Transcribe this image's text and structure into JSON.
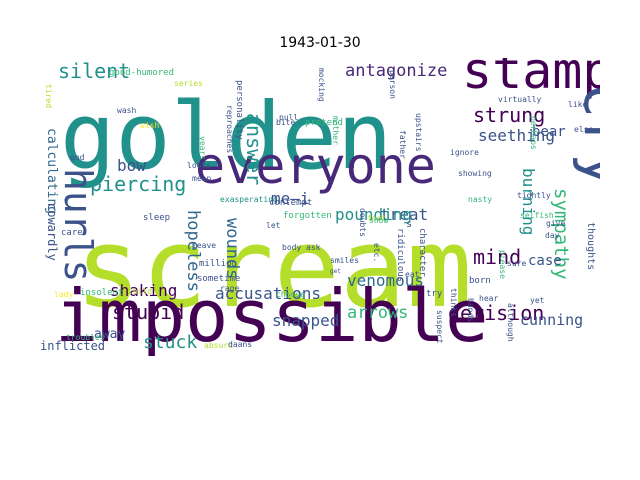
{
  "title": "1943-01-30",
  "palette": {
    "purple": "#440154",
    "indigo": "#3b528b",
    "blue": "#31688e",
    "teal": "#21918c",
    "green": "#35b779",
    "lime": "#b5de2b",
    "yellow": "#fde725"
  },
  "words": [
    {
      "text": "scream",
      "color": "#b5de2b"
    },
    {
      "text": "golden",
      "color": "#21918c"
    },
    {
      "text": "impossible",
      "color": "#440154"
    },
    {
      "text": "everyone",
      "color": "#482878"
    },
    {
      "text": "stamp",
      "color": "#440154"
    },
    {
      "text": "cry",
      "color": "#3b528b"
    },
    {
      "text": "hurls",
      "color": "#3b528b"
    },
    {
      "text": "antagonize",
      "color": "#482878"
    },
    {
      "text": "silent",
      "color": "#21918c"
    },
    {
      "text": "piercing",
      "color": "#21918c"
    },
    {
      "text": "bow",
      "color": "#3b528b"
    },
    {
      "text": "answer",
      "color": "#21918c"
    },
    {
      "text": "strung",
      "color": "#440154"
    },
    {
      "text": "mind",
      "color": "#440154"
    },
    {
      "text": "sympathy",
      "color": "#35b779"
    },
    {
      "text": "burning",
      "color": "#21918c"
    },
    {
      "text": "seething",
      "color": "#3b528b"
    },
    {
      "text": "wounds",
      "color": "#31688e"
    },
    {
      "text": "hopeless",
      "color": "#31688e"
    },
    {
      "text": "me—i",
      "color": "#3b528b"
    },
    {
      "text": "treat",
      "color": "#3b528b"
    },
    {
      "text": "pounding",
      "color": "#21918c"
    },
    {
      "text": "venomous",
      "color": "#31688e"
    },
    {
      "text": "arrows",
      "color": "#35b779"
    },
    {
      "text": "accusations",
      "color": "#3b528b"
    },
    {
      "text": "derision",
      "color": "#440154"
    },
    {
      "text": "shaking",
      "color": "#440154"
    },
    {
      "text": "stupid",
      "color": "#440154"
    },
    {
      "text": "stuck",
      "color": "#21918c"
    },
    {
      "text": "snapped",
      "color": "#3b528b"
    },
    {
      "text": "cunning",
      "color": "#3b528b"
    },
    {
      "text": "case",
      "color": "#3b528b"
    },
    {
      "text": "bear",
      "color": "#3b528b"
    },
    {
      "text": "calculating",
      "color": "#31688e"
    },
    {
      "text": "cowardly",
      "color": "#3b528b"
    },
    {
      "text": "away",
      "color": "#3b528b"
    },
    {
      "text": "inflicted",
      "color": "#3b528b"
    },
    {
      "text": "thoughts",
      "color": "#3b528b"
    },
    {
      "text": "good-humored",
      "color": "#35b779"
    },
    {
      "text": "personality",
      "color": "#3b528b"
    },
    {
      "text": "reproaches",
      "color": "#3b528b"
    },
    {
      "text": "exasperating",
      "color": "#21918c"
    },
    {
      "text": "mocking",
      "color": "#3b528b"
    },
    {
      "text": "mother",
      "color": "#35b779"
    },
    {
      "text": "pretend",
      "color": "#35b779"
    },
    {
      "text": "upstairs",
      "color": "#3b528b"
    },
    {
      "text": "father",
      "color": "#3b528b"
    },
    {
      "text": "virtually",
      "color": "#3b528b"
    },
    {
      "text": "showing",
      "color": "#3b528b"
    },
    {
      "text": "nasty",
      "color": "#35b779"
    },
    {
      "text": "ignore",
      "color": "#3b528b"
    },
    {
      "text": "tightly",
      "color": "#3b528b"
    },
    {
      "text": "selfish",
      "color": "#35b779"
    },
    {
      "text": "ridiculous",
      "color": "#3b528b"
    },
    {
      "text": "character",
      "color": "#3b528b"
    },
    {
      "text": "suspect",
      "color": "#3b528b"
    },
    {
      "text": "thinks",
      "color": "#3b528b"
    },
    {
      "text": "forgotten",
      "color": "#35b779"
    },
    {
      "text": "contempt",
      "color": "#3b528b"
    },
    {
      "text": "doubts",
      "color": "#3b528b"
    },
    {
      "text": "million",
      "color": "#3b528b"
    },
    {
      "text": "sometime",
      "color": "#3b528b"
    },
    {
      "text": "insolent",
      "color": "#35b779"
    },
    {
      "text": "troubles",
      "color": "#35b779"
    },
    {
      "text": "absurd",
      "color": "#b5de2b"
    },
    {
      "text": "smiles",
      "color": "#3b528b"
    },
    {
      "text": "choose",
      "color": "#35b779"
    },
    {
      "text": "rage",
      "color": "#3b528b"
    },
    {
      "text": "daans",
      "color": "#3b528b"
    },
    {
      "text": "born",
      "color": "#3b528b"
    },
    {
      "text": "hear",
      "color": "#3b528b"
    },
    {
      "text": "try",
      "color": "#3b528b"
    },
    {
      "text": "please",
      "color": "#35b779"
    },
    {
      "text": "sure",
      "color": "#3b528b"
    },
    {
      "text": "give",
      "color": "#3b528b"
    },
    {
      "text": "day",
      "color": "#3b528b"
    },
    {
      "text": "wash",
      "color": "#3b528b"
    },
    {
      "text": "series",
      "color": "#b5de2b"
    },
    {
      "text": "bite",
      "color": "#3b528b"
    },
    {
      "text": "pull",
      "color": "#3b528b"
    },
    {
      "text": "years",
      "color": "#35b779"
    },
    {
      "text": "mean",
      "color": "#3b528b"
    },
    {
      "text": "looks",
      "color": "#3b528b"
    },
    {
      "text": "leave",
      "color": "#3b528b"
    },
    {
      "text": "sleep",
      "color": "#3b528b"
    },
    {
      "text": "care",
      "color": "#3b528b"
    },
    {
      "text": "god",
      "color": "#3b528b"
    },
    {
      "text": "body",
      "color": "#3b528b"
    },
    {
      "text": "let",
      "color": "#3b528b"
    },
    {
      "text": "ask",
      "color": "#3b528b"
    },
    {
      "text": "foot",
      "color": "#b5de2b"
    },
    {
      "text": "eat",
      "color": "#3b528b"
    },
    {
      "text": "etc.",
      "color": "#3b528b"
    },
    {
      "text": "person",
      "color": "#3b528b"
    },
    {
      "text": "perhaps",
      "color": "#35b779"
    },
    {
      "text": "although",
      "color": "#3b528b"
    },
    {
      "text": "yet",
      "color": "#3b528b"
    },
    {
      "text": "else",
      "color": "#3b528b"
    },
    {
      "text": "like",
      "color": "#3b528b"
    },
    {
      "text": "hands",
      "color": "#3b528b"
    },
    {
      "text": "child",
      "color": "#b5de2b"
    },
    {
      "text": "show",
      "color": "#35b779"
    },
    {
      "text": "tired",
      "color": "#b5de2b"
    },
    {
      "text": "wish",
      "color": "#fde725"
    },
    {
      "text": "lady",
      "color": "#fde725"
    },
    {
      "text": "get",
      "color": "#3b528b"
    },
    {
      "text": "s",
      "color": "#3b528b"
    }
  ]
}
